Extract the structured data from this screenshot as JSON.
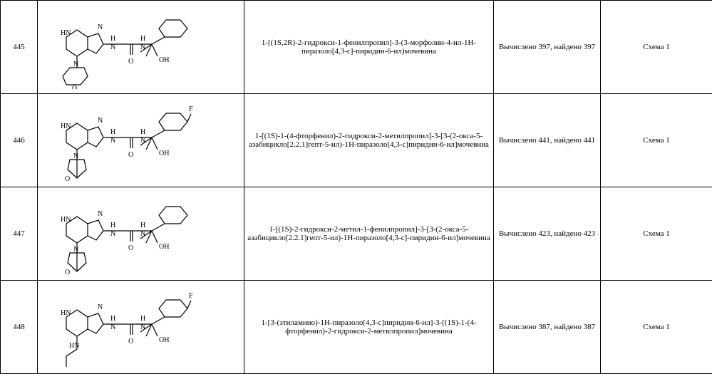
{
  "cols": {
    "id_w": 52,
    "struct_w": 290,
    "name_w": 350,
    "mass_w": 150,
    "scheme_w": 157
  },
  "rows": [
    {
      "id": "445",
      "name": "1-[(1S,2R)-2-гидрокси-1-фенилпропил]-3-(3-морфолин-4-ил-1H-пиразоло[4,3-c]-пиридин-6-ил)мочевина",
      "mass": "Вычислено 397, найдено 397",
      "scheme": "Схема 1",
      "struct": {
        "type": "molecule",
        "rings": 3,
        "hetero": "morpholine",
        "label_OH": true,
        "label_F": false,
        "label_NH_chain": true
      }
    },
    {
      "id": "446",
      "name": "1-[(1S)-1-(4-фторфенил)-2-гидрокси-2-метилпропил]-3-[3-(2-окса-5-азабицикло[2.2.1]гепт-5-ил)-1H-пиразоло[4,3-c]пиридин-6-ил]мочевина",
      "mass": "Вычислено 441, найдено 441",
      "scheme": "Схема 1",
      "struct": {
        "type": "molecule",
        "rings": 3,
        "hetero": "oxa-azabicyclo",
        "label_OH": true,
        "label_F": true,
        "label_NH_chain": true
      }
    },
    {
      "id": "447",
      "name": "1-[(1S)-2-гидрокси-2-метил-1-фенилпропил]-3-[3-(2-окса-5-азабицикло[2.2.1]гепт-5-ил)-1H-пиразоло[4,3-c]-пиридин-6-ил]мочевина",
      "mass": "Вычислено 423, найдено 423",
      "scheme": "Схема 1",
      "struct": {
        "type": "molecule",
        "rings": 3,
        "hetero": "oxa-azabicyclo",
        "label_OH": true,
        "label_F": false,
        "label_NH_chain": true
      }
    },
    {
      "id": "448",
      "name": "1-[3-(этиламино)-1H-пиразоло[4,3-c]пиридин-6-ил]-3-[(1S)-1-(4-фторфенил)-2-гидрокси-2-метилпропил]мочевина",
      "mass": "Вычислено 387, найдено 387",
      "scheme": "Схема 1",
      "struct": {
        "type": "molecule",
        "rings": 2,
        "hetero": "ethylamino",
        "label_OH": true,
        "label_F": true,
        "label_NH_chain": true
      }
    }
  ],
  "svg": {
    "stroke": "#000000",
    "stroke_width": 1.2,
    "font": "10px serif"
  }
}
